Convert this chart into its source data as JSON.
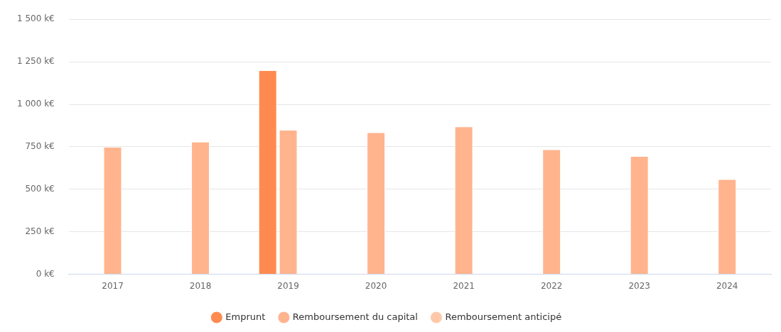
{
  "chart_data": {
    "type": "bar",
    "categories": [
      "2017",
      "2018",
      "2019",
      "2020",
      "2021",
      "2022",
      "2023",
      "2024"
    ],
    "series": [
      {
        "name": "Emprunt",
        "color": "#ff8a50",
        "values": [
          null,
          null,
          1200,
          null,
          null,
          null,
          null,
          null
        ]
      },
      {
        "name": "Remboursement du capital",
        "color": "#ffb48e",
        "values": [
          750,
          780,
          850,
          835,
          870,
          735,
          695,
          560
        ]
      },
      {
        "name": "Remboursement anticipé",
        "color": "#ffc8aa",
        "values": [
          null,
          null,
          null,
          null,
          null,
          null,
          null,
          null
        ]
      }
    ],
    "ylim": [
      0,
      1500
    ],
    "yticks": [
      {
        "value": 0,
        "label": "0 k€"
      },
      {
        "value": 250,
        "label": "250 k€"
      },
      {
        "value": 500,
        "label": "500 k€"
      },
      {
        "value": 750,
        "label": "750 k€"
      },
      {
        "value": 1000,
        "label": "1 000 k€"
      },
      {
        "value": 1250,
        "label": "1 250 k€"
      },
      {
        "value": 1500,
        "label": "1 500 k€"
      }
    ],
    "grid": "y",
    "legend": "bottom"
  }
}
